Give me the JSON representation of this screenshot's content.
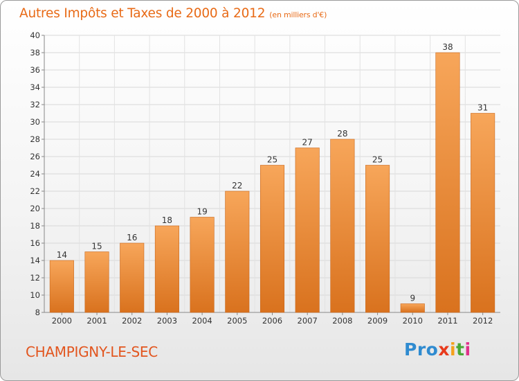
{
  "header": {
    "title": "Autres Impôts et Taxes de 2000 à 2012",
    "unit": "(en milliers d'€)"
  },
  "footer": {
    "commune": "CHAMPIGNY-LE-SEC",
    "logo": [
      "Pro",
      "x",
      "i",
      "t",
      "i"
    ]
  },
  "colors": {
    "bar_light": "#f7a65a",
    "bar_dark": "#d9721e",
    "title": "#e86a16",
    "commune": "#e2551e"
  },
  "chart_data": {
    "type": "bar",
    "title": "Autres Impôts et Taxes de 2000 à 2012",
    "categories": [
      "2000",
      "2001",
      "2002",
      "2003",
      "2004",
      "2005",
      "2006",
      "2007",
      "2008",
      "2009",
      "2010",
      "2011",
      "2012"
    ],
    "values": [
      14,
      15,
      16,
      18,
      19,
      22,
      25,
      27,
      28,
      25,
      9,
      38,
      31
    ],
    "ylim": [
      8,
      40
    ],
    "yticks": [
      8,
      10,
      12,
      14,
      16,
      18,
      20,
      22,
      24,
      26,
      28,
      30,
      32,
      34,
      36,
      38,
      40
    ],
    "grid": true,
    "legend": "none"
  }
}
